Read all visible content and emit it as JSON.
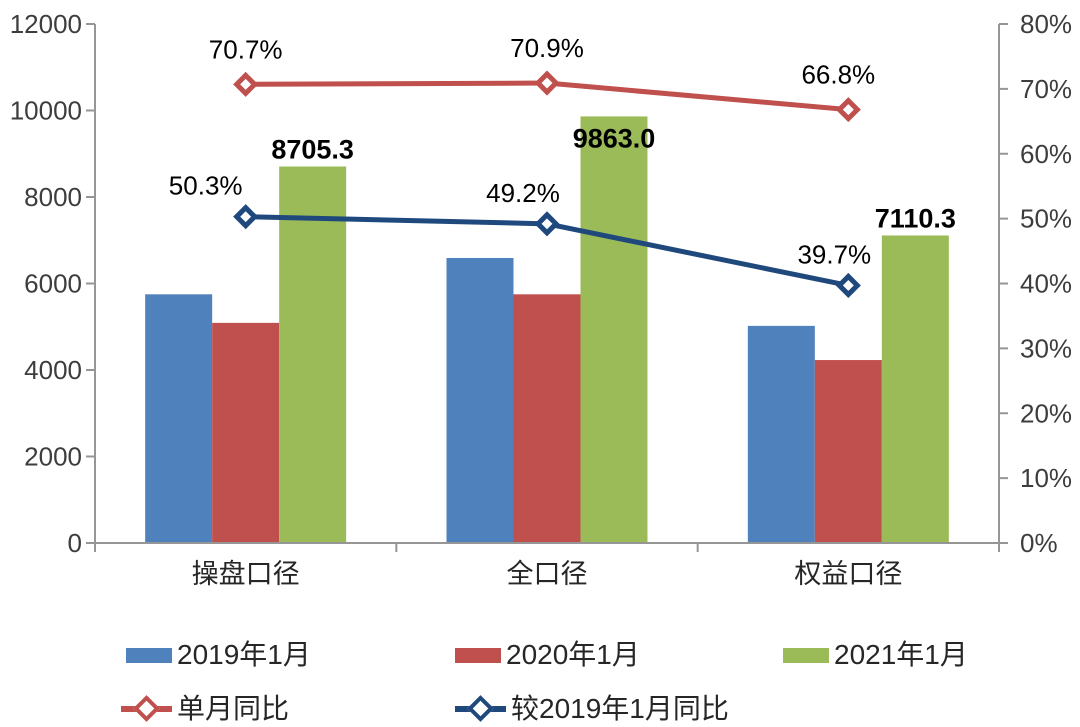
{
  "chart_data": {
    "type": "bar+line",
    "title": "",
    "categories": [
      "操盘口径",
      "全口径",
      "权益口径"
    ],
    "bar_series": [
      {
        "name": "2019年1月",
        "color": "#4F81BD",
        "values": [
          5750,
          6590,
          5020
        ]
      },
      {
        "name": "2020年1月",
        "color": "#C0504D",
        "values": [
          5090,
          5750,
          4230
        ]
      },
      {
        "name": "2021年1月",
        "color": "#9BBB59",
        "values": [
          8705.3,
          9863.0,
          7110.3
        ],
        "labels": [
          "8705.3",
          "9863.0",
          "7110.3"
        ],
        "label_placement": [
          "above",
          "inside",
          "above"
        ]
      }
    ],
    "line_series": [
      {
        "name": "单月同比",
        "color": "#C0504D",
        "axis": "right",
        "values": [
          70.7,
          70.9,
          66.8
        ],
        "labels": [
          "70.7%",
          "70.9%",
          "66.8%"
        ]
      },
      {
        "name": "较2019年1月同比",
        "color": "#1F497D",
        "axis": "right",
        "values": [
          50.3,
          49.2,
          39.7
        ],
        "labels": [
          "50.3%",
          "49.2%",
          "39.7%"
        ]
      }
    ],
    "left_axis": {
      "min": 0,
      "max": 12000,
      "step": 2000,
      "tick_labels": [
        "0",
        "2000",
        "4000",
        "6000",
        "8000",
        "10000",
        "12000"
      ]
    },
    "right_axis": {
      "min": 0,
      "max": 80,
      "step": 10,
      "tick_labels": [
        "0%",
        "10%",
        "20%",
        "30%",
        "40%",
        "50%",
        "60%",
        "70%",
        "80%"
      ]
    },
    "grid": false,
    "legend_position": "bottom",
    "colors": {
      "axis": "#969696",
      "tick_text": "#3d3d3d",
      "category_text": "#262626",
      "data_label": "#000000",
      "background": "#ffffff"
    }
  }
}
